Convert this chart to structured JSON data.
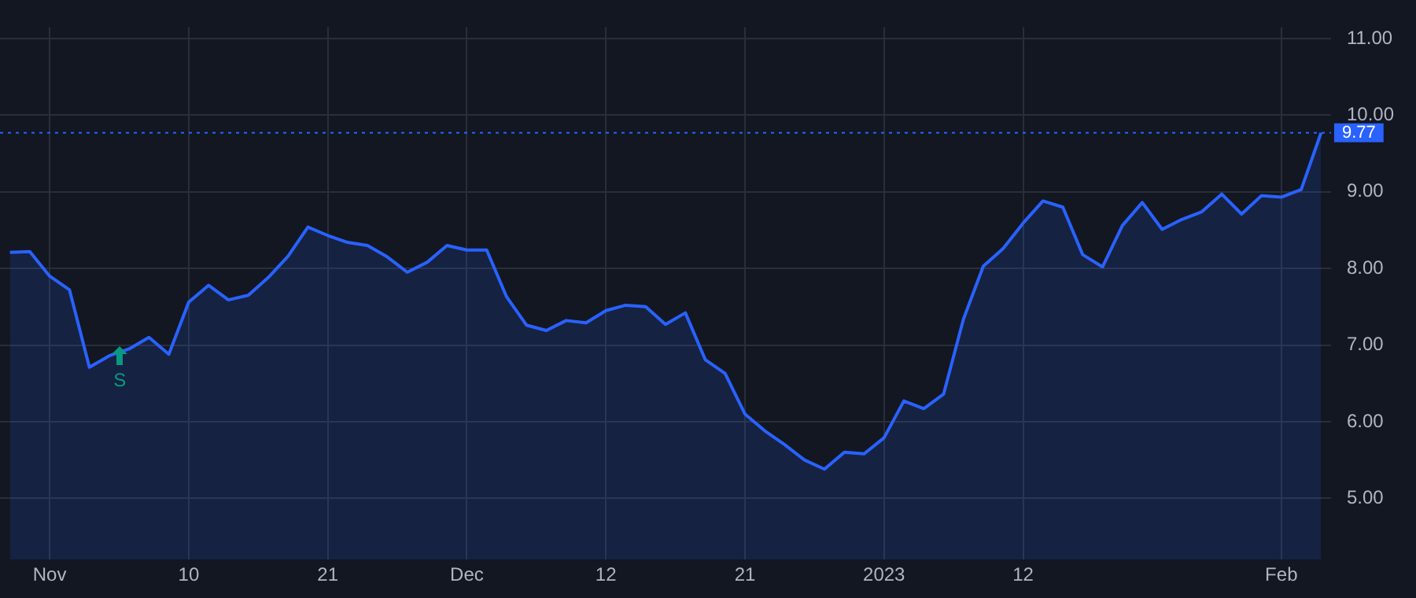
{
  "chart_data": {
    "type": "area",
    "categories": [
      null,
      null,
      "Nov",
      null,
      null,
      null,
      null,
      null,
      null,
      "10",
      null,
      null,
      null,
      null,
      null,
      null,
      "21",
      null,
      null,
      null,
      null,
      null,
      null,
      "Dec",
      null,
      null,
      null,
      null,
      null,
      null,
      "12",
      null,
      null,
      null,
      null,
      null,
      null,
      "21",
      null,
      null,
      null,
      null,
      null,
      null,
      "2023",
      null,
      null,
      null,
      null,
      null,
      null,
      "12",
      null,
      null,
      null,
      null,
      null,
      null,
      null,
      null,
      null,
      null,
      null,
      null,
      "Feb",
      null,
      null
    ],
    "series": [
      {
        "color": "#2962ff",
        "values": [
          8.21,
          8.22,
          7.9,
          7.72,
          6.71,
          6.86,
          6.95,
          7.1,
          6.88,
          7.56,
          7.78,
          7.59,
          7.65,
          7.88,
          8.16,
          8.54,
          8.43,
          8.34,
          8.3,
          8.15,
          7.95,
          8.08,
          8.3,
          8.24,
          8.24,
          7.63,
          7.26,
          7.19,
          7.32,
          7.29,
          7.45,
          7.52,
          7.5,
          7.27,
          7.42,
          6.81,
          6.63,
          6.1,
          5.88,
          5.7,
          5.5,
          5.38,
          5.6,
          5.58,
          5.79,
          6.27,
          6.17,
          6.36,
          7.34,
          8.03,
          8.26,
          8.59,
          8.88,
          8.8,
          8.18,
          8.02,
          8.56,
          8.86,
          8.51,
          8.64,
          8.74,
          8.97,
          8.71,
          8.95,
          8.93,
          9.03,
          9.77
        ]
      }
    ],
    "ylim": [
      4.2,
      11.15
    ],
    "yticks": [
      {
        "value": 5,
        "label": "5.00"
      },
      {
        "value": 6,
        "label": "6.00"
      },
      {
        "value": 7,
        "label": "7.00"
      },
      {
        "value": 8,
        "label": "8.00"
      },
      {
        "value": 9,
        "label": "9.00"
      },
      {
        "value": 10,
        "label": "10.00"
      },
      {
        "value": 11,
        "label": "11.00"
      }
    ],
    "ref_lines": [
      {
        "axis": "y",
        "value": 9.77,
        "label": "9.77",
        "color": "#2962ff",
        "line_style": "dotted"
      }
    ],
    "annotations": [
      "S"
    ],
    "grid": true,
    "legend": false,
    "marker": "none"
  }
}
